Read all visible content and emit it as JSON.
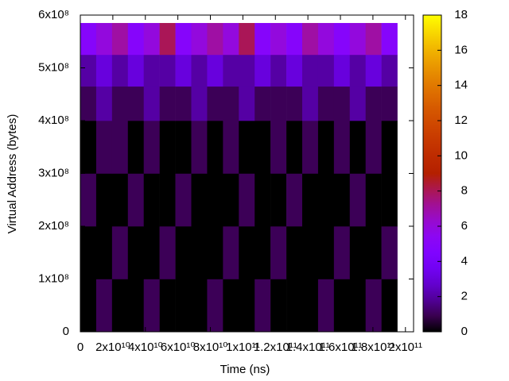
{
  "chart_data": {
    "type": "heatmap",
    "x_label": "Time (ns)",
    "y_label": "Virtual Address (bytes)",
    "x_bins": [
      0,
      9750000000,
      19500000000,
      29250000000,
      39000000000,
      48750000000,
      58500000000,
      68250000000,
      78000000000,
      87750000000,
      97500000000,
      107250000000,
      117000000000,
      126750000000,
      136500000000,
      146250000000,
      156000000000,
      165750000000,
      175500000000,
      185250000000,
      195000000000
    ],
    "y_bins": [
      0,
      100000000,
      200000000,
      300000000,
      400000000,
      465000000,
      525000000,
      585000000
    ],
    "z": [
      [
        0,
        1,
        0,
        0,
        1,
        0,
        0,
        0,
        1,
        0,
        0,
        1,
        0,
        0,
        0,
        1,
        0,
        0,
        1,
        0
      ],
      [
        0,
        0,
        1,
        0,
        0,
        1,
        0,
        0,
        0,
        1,
        0,
        0,
        1,
        0,
        0,
        0,
        1,
        0,
        0,
        1
      ],
      [
        1,
        0,
        0,
        1,
        0,
        0,
        1,
        0,
        0,
        0,
        1,
        0,
        0,
        1,
        0,
        0,
        0,
        1,
        0,
        0
      ],
      [
        0,
        1,
        1,
        0,
        1,
        0,
        0,
        1,
        0,
        1,
        0,
        0,
        1,
        0,
        1,
        0,
        1,
        0,
        1,
        0
      ],
      [
        1,
        2,
        1,
        1,
        2,
        1,
        1,
        2,
        1,
        1,
        2,
        1,
        1,
        1,
        2,
        1,
        1,
        2,
        1,
        1
      ],
      [
        2,
        3,
        2,
        3,
        2,
        2,
        3,
        2,
        3,
        2,
        2,
        3,
        2,
        3,
        2,
        2,
        3,
        2,
        3,
        2
      ],
      [
        5,
        6,
        7,
        5,
        6,
        8,
        5,
        6,
        7,
        6,
        8,
        5,
        6,
        5,
        7,
        6,
        5,
        6,
        7,
        5
      ]
    ],
    "xlim": [
      0,
      205000000000
    ],
    "xticks": [
      0,
      {
        "value": 20000000000,
        "label": "2x10¹⁰"
      },
      {
        "value": 40000000000,
        "label": "4x10¹⁰"
      },
      {
        "value": 60000000000,
        "label": "6x10¹⁰"
      },
      {
        "value": 80000000000,
        "label": "8x10¹⁰"
      },
      {
        "value": 100000000000,
        "label": "1x10¹¹"
      },
      {
        "value": 120000000000,
        "label": "1.2x10¹¹"
      },
      {
        "value": 140000000000,
        "label": "1.4x10¹¹"
      },
      {
        "value": 160000000000,
        "label": "1.6x10¹¹"
      },
      {
        "value": 180000000000,
        "label": "1.8x10¹¹"
      },
      {
        "value": 200000000000,
        "label": "2x10¹¹"
      }
    ],
    "ylim": [
      0,
      600000000
    ],
    "yticks": [
      0,
      {
        "value": 100000000,
        "label": "1x10⁸"
      },
      {
        "value": 200000000,
        "label": "2x10⁸"
      },
      {
        "value": 300000000,
        "label": "3x10⁸"
      },
      {
        "value": 400000000,
        "label": "4x10⁸"
      },
      {
        "value": 500000000,
        "label": "5x10⁸"
      },
      {
        "value": 600000000,
        "label": "6x10⁸"
      }
    ],
    "cblim": [
      0,
      18
    ],
    "cbticks": [
      0,
      2,
      4,
      6,
      8,
      10,
      12,
      14,
      16,
      18
    ]
  }
}
